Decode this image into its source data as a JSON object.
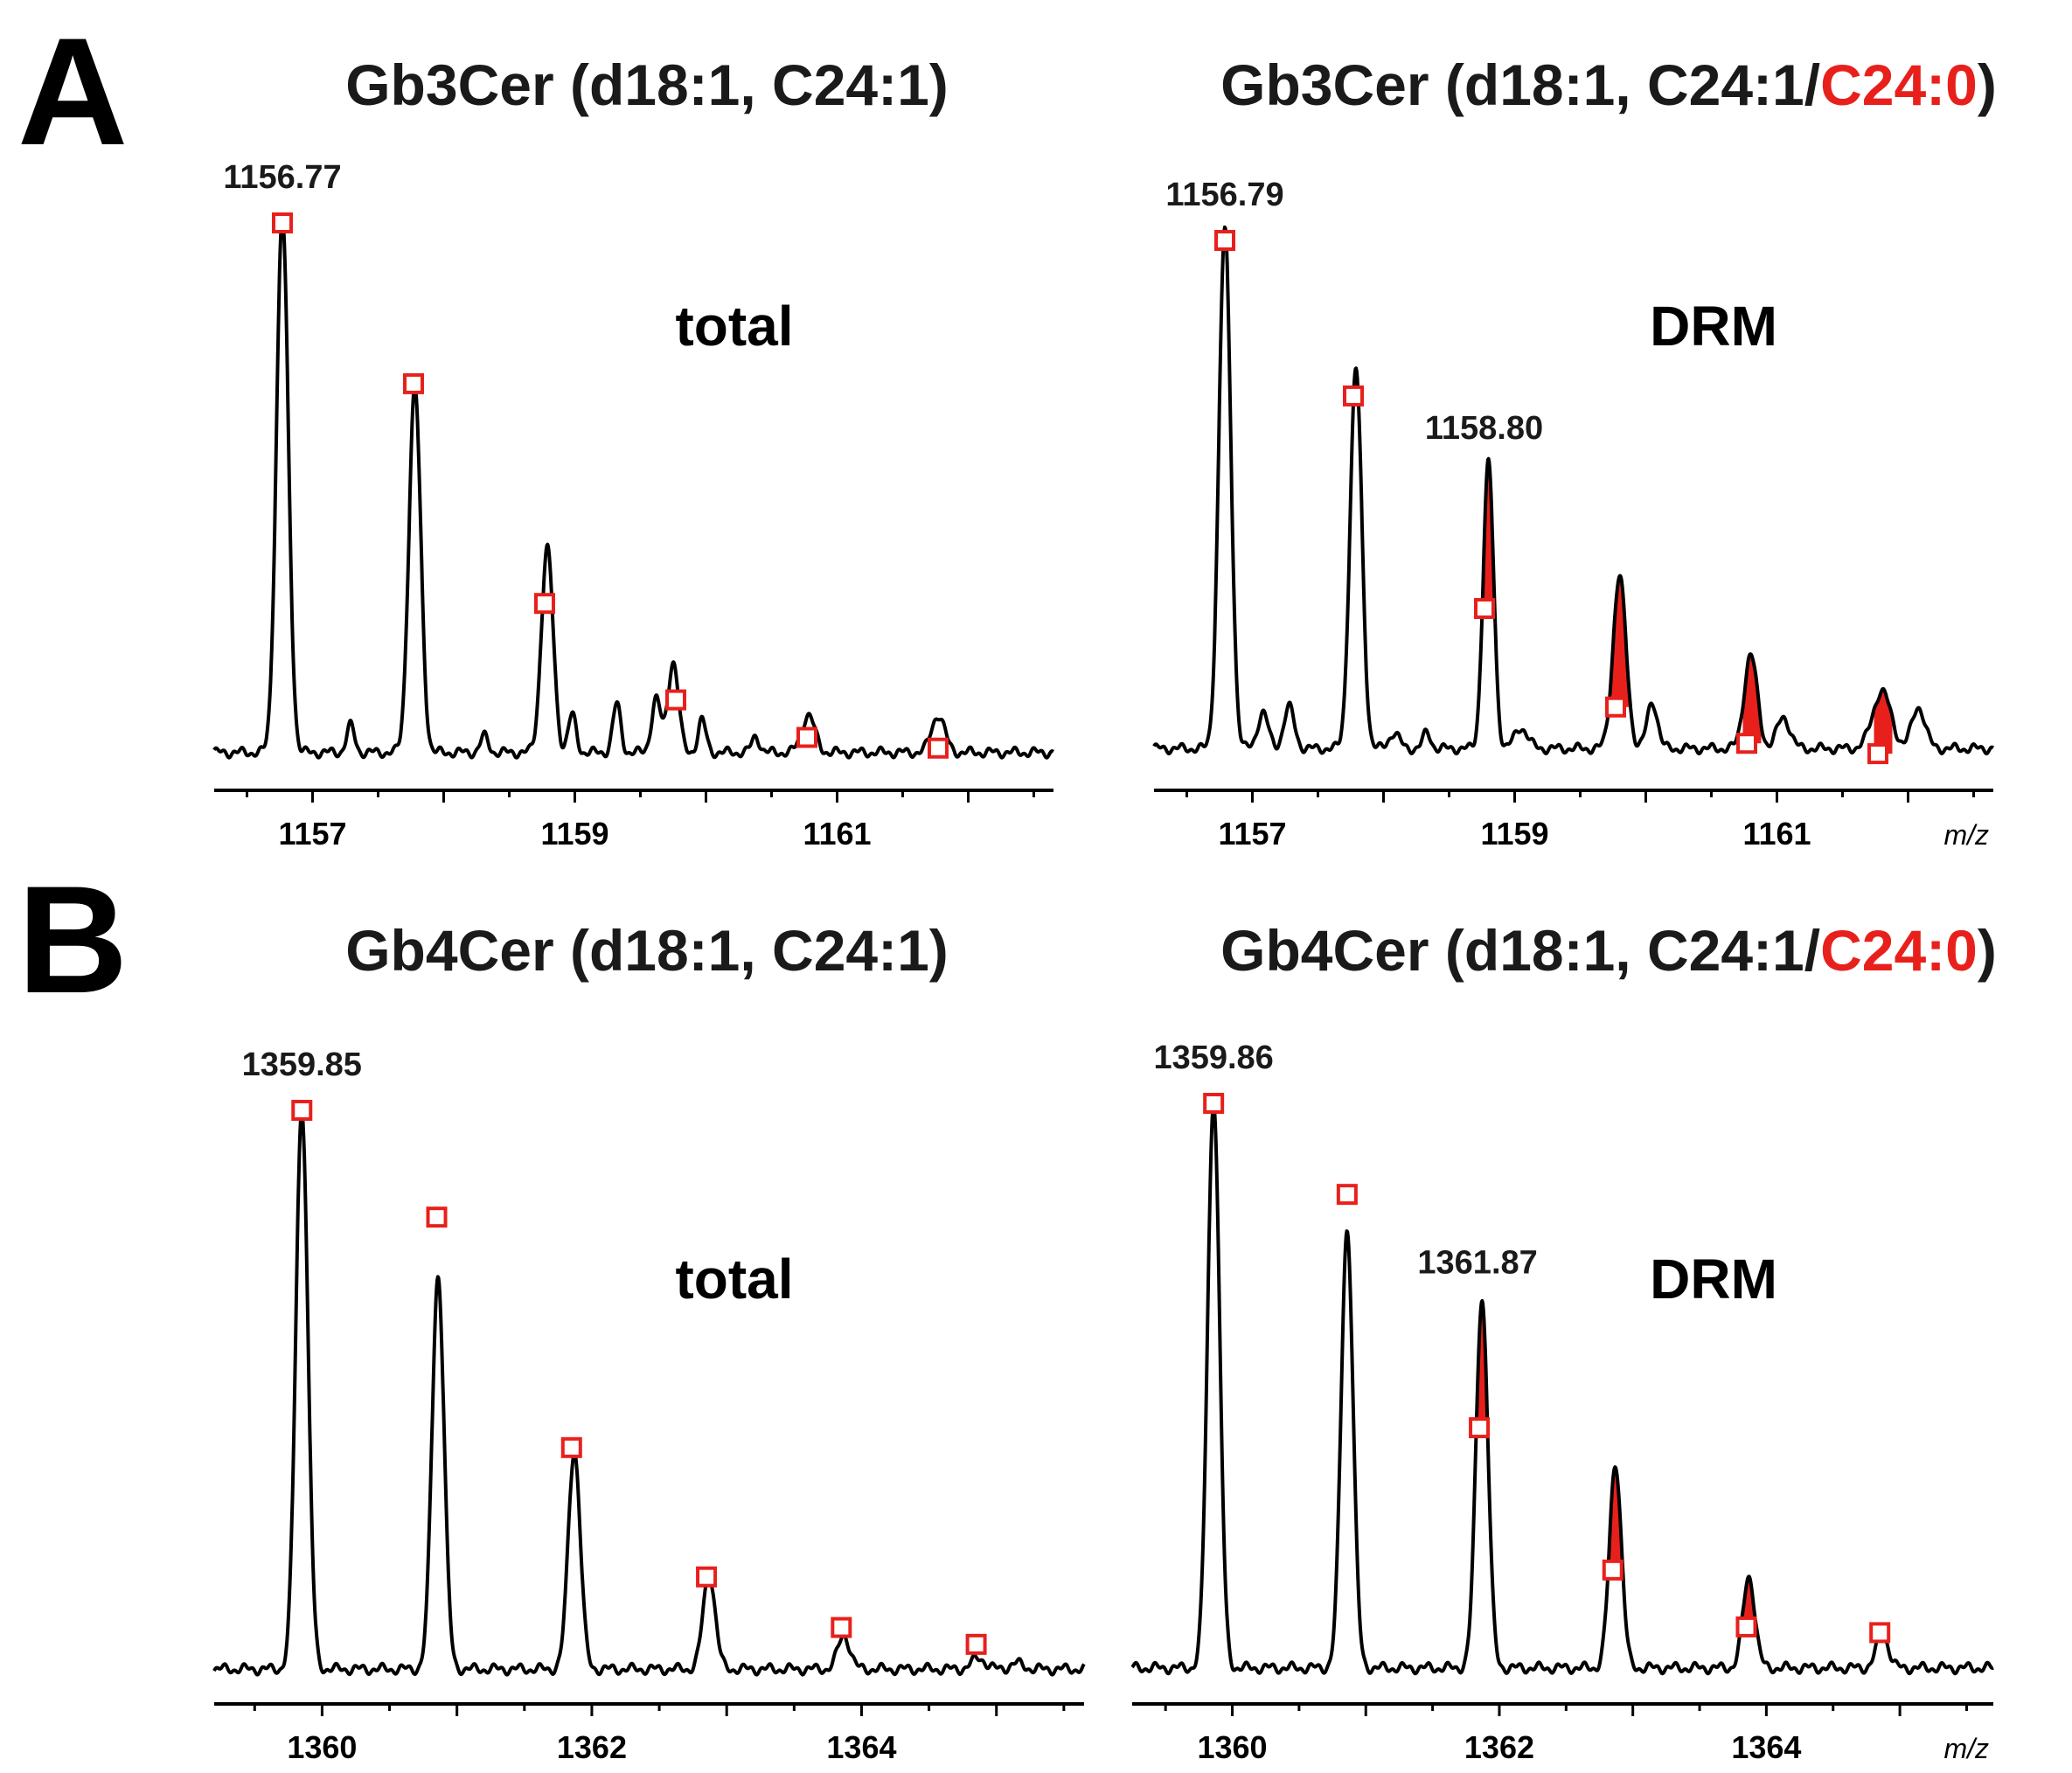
{
  "colors": {
    "spectrum": "#000000",
    "theoretical": "#e8201c",
    "title": "#1a1a1a"
  },
  "panels": [
    {
      "letter": "A"
    },
    {
      "letter": "B"
    }
  ],
  "chart_data": [
    {
      "type": "line",
      "panel": "A",
      "title_parts": [
        {
          "text": "Gb3Cer (d18:1, C24:1)",
          "color": "#1a1a1a"
        }
      ],
      "label": "total",
      "xlabel": "",
      "xlim": [
        1156.25,
        1162.65
      ],
      "ylim": [
        0,
        100
      ],
      "xticks": [
        1157,
        1159,
        1161
      ],
      "peaks": [
        {
          "x": 1156.77,
          "h": 100,
          "w": 0.045
        },
        {
          "x": 1157.29,
          "h": 5,
          "w": 0.03
        },
        {
          "x": 1157.78,
          "h": 68,
          "w": 0.045
        },
        {
          "x": 1158.31,
          "h": 3,
          "w": 0.03
        },
        {
          "x": 1158.79,
          "h": 38,
          "w": 0.045
        },
        {
          "x": 1158.98,
          "h": 7,
          "w": 0.03
        },
        {
          "x": 1159.32,
          "h": 9,
          "w": 0.03
        },
        {
          "x": 1159.62,
          "h": 10,
          "w": 0.035
        },
        {
          "x": 1159.75,
          "h": 17,
          "w": 0.04
        },
        {
          "x": 1159.97,
          "h": 6,
          "w": 0.03
        },
        {
          "x": 1160.38,
          "h": 3,
          "w": 0.03
        },
        {
          "x": 1160.78,
          "h": 7,
          "w": 0.05
        },
        {
          "x": 1161.77,
          "h": 7,
          "w": 0.05
        }
      ],
      "baseline": 1.2,
      "theoretical": [
        {
          "x": 1156.77,
          "y": 100
        },
        {
          "x": 1157.77,
          "y": 70
        },
        {
          "x": 1158.77,
          "y": 29
        },
        {
          "x": 1159.77,
          "y": 11
        },
        {
          "x": 1160.77,
          "y": 4
        },
        {
          "x": 1161.77,
          "y": 2
        }
      ],
      "annotations": [
        {
          "text": "1156.77",
          "x": 1156.77
        }
      ],
      "filled": []
    },
    {
      "type": "line",
      "panel": "A",
      "title_parts": [
        {
          "text": "Gb3Cer (d18:1, C24:1/",
          "color": "#1a1a1a"
        },
        {
          "text": "C24:0",
          "color": "#e8201c"
        },
        {
          "text": ")",
          "color": "#1a1a1a"
        }
      ],
      "label": "DRM",
      "xlabel": "m/z",
      "xlim": [
        1156.25,
        1162.65
      ],
      "ylim": [
        0,
        100
      ],
      "xticks": [
        1157,
        1159,
        1161
      ],
      "peaks": [
        {
          "x": 1156.79,
          "h": 100,
          "w": 0.045
        },
        {
          "x": 1157.08,
          "h": 7,
          "w": 0.04
        },
        {
          "x": 1157.28,
          "h": 8,
          "w": 0.04
        },
        {
          "x": 1157.79,
          "h": 73,
          "w": 0.045
        },
        {
          "x": 1158.08,
          "h": 3,
          "w": 0.04
        },
        {
          "x": 1158.33,
          "h": 3,
          "w": 0.03
        },
        {
          "x": 1158.8,
          "h": 55,
          "w": 0.04
        },
        {
          "x": 1159.05,
          "h": 4,
          "w": 0.05
        },
        {
          "x": 1159.8,
          "h": 33,
          "w": 0.05
        },
        {
          "x": 1160.05,
          "h": 9,
          "w": 0.04
        },
        {
          "x": 1160.8,
          "h": 18,
          "w": 0.05
        },
        {
          "x": 1161.05,
          "h": 6,
          "w": 0.05
        },
        {
          "x": 1161.8,
          "h": 11,
          "w": 0.07
        },
        {
          "x": 1162.08,
          "h": 8,
          "w": 0.05
        }
      ],
      "baseline": 2,
      "theoretical": [
        {
          "x": 1156.79,
          "y": 100
        },
        {
          "x": 1157.77,
          "y": 70
        },
        {
          "x": 1158.77,
          "y": 29
        },
        {
          "x": 1159.77,
          "y": 10
        },
        {
          "x": 1160.77,
          "y": 3
        },
        {
          "x": 1161.77,
          "y": 1
        }
      ],
      "annotations": [
        {
          "text": "1156.79",
          "x": 1156.79
        },
        {
          "text": "1158.80",
          "x": 1158.8
        }
      ],
      "filled": [
        1158.8,
        1159.8,
        1160.8,
        1161.8
      ]
    },
    {
      "type": "line",
      "panel": "B",
      "title_parts": [
        {
          "text": "Gb4Cer (d18:1, C24:1)",
          "color": "#1a1a1a"
        }
      ],
      "label": "total",
      "xlabel": "",
      "xlim": [
        1359.2,
        1365.65
      ],
      "ylim": [
        0,
        100
      ],
      "xticks": [
        1360,
        1362,
        1364
      ],
      "peaks": [
        {
          "x": 1359.85,
          "h": 100,
          "w": 0.045
        },
        {
          "x": 1360.86,
          "h": 70,
          "w": 0.045
        },
        {
          "x": 1361.87,
          "h": 39,
          "w": 0.045
        },
        {
          "x": 1362.87,
          "h": 17,
          "w": 0.045
        },
        {
          "x": 1363.87,
          "h": 6,
          "w": 0.045
        },
        {
          "x": 1364.87,
          "h": 2,
          "w": 0.05
        },
        {
          "x": 1365.15,
          "h": 1,
          "w": 0.05
        }
      ],
      "baseline": 0.6,
      "theoretical": [
        {
          "x": 1359.85,
          "y": 100
        },
        {
          "x": 1360.85,
          "y": 81
        },
        {
          "x": 1361.85,
          "y": 40
        },
        {
          "x": 1362.85,
          "y": 17
        },
        {
          "x": 1363.85,
          "y": 8
        },
        {
          "x": 1364.85,
          "y": 5
        }
      ],
      "annotations": [
        {
          "text": "1359.85",
          "x": 1359.85
        }
      ],
      "filled": []
    },
    {
      "type": "line",
      "panel": "B",
      "title_parts": [
        {
          "text": "Gb4Cer (d18:1, C24:1/",
          "color": "#1a1a1a"
        },
        {
          "text": "C24:0",
          "color": "#e8201c"
        },
        {
          "text": ")",
          "color": "#1a1a1a"
        }
      ],
      "label": "DRM",
      "xlabel": "m/z",
      "xlim": [
        1359.25,
        1365.7
      ],
      "ylim": [
        0,
        100
      ],
      "xticks": [
        1360,
        1362,
        1364
      ],
      "peaks": [
        {
          "x": 1359.86,
          "h": 100,
          "w": 0.045
        },
        {
          "x": 1360.86,
          "h": 77,
          "w": 0.045
        },
        {
          "x": 1361.87,
          "h": 65,
          "w": 0.045
        },
        {
          "x": 1362.87,
          "h": 36,
          "w": 0.045
        },
        {
          "x": 1363.87,
          "h": 16,
          "w": 0.045
        },
        {
          "x": 1364.87,
          "h": 6,
          "w": 0.045
        }
      ],
      "baseline": 0.8,
      "theoretical": [
        {
          "x": 1359.86,
          "y": 100
        },
        {
          "x": 1360.86,
          "y": 84
        },
        {
          "x": 1361.85,
          "y": 43
        },
        {
          "x": 1362.85,
          "y": 18
        },
        {
          "x": 1363.85,
          "y": 8
        },
        {
          "x": 1364.85,
          "y": 7
        }
      ],
      "annotations": [
        {
          "text": "1359.86",
          "x": 1359.86
        },
        {
          "text": "1361.87",
          "x": 1361.87
        }
      ],
      "filled": [
        1361.87,
        1362.87,
        1363.87
      ]
    }
  ]
}
